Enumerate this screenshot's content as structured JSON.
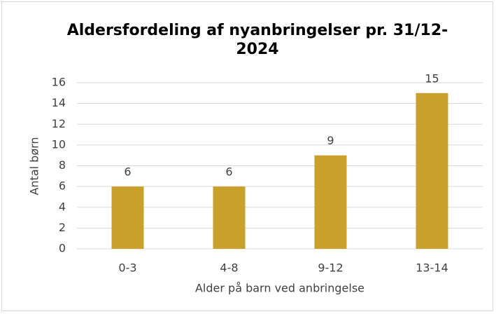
{
  "chart_data": {
    "type": "bar",
    "title": "Aldersfordeling af nyanbringelser pr. 31/12-2024",
    "x_label": "Alder på barn ved anbringelse",
    "y_label": "Antal børn",
    "categories": [
      "0-3",
      "4-8",
      "9-12",
      "13-14"
    ],
    "values": [
      6,
      6,
      9,
      15
    ],
    "color": "#c9a02c",
    "ylim": [
      0,
      16
    ],
    "yticks": [
      0,
      2,
      4,
      6,
      8,
      10,
      12,
      14,
      16
    ],
    "grid": true
  }
}
